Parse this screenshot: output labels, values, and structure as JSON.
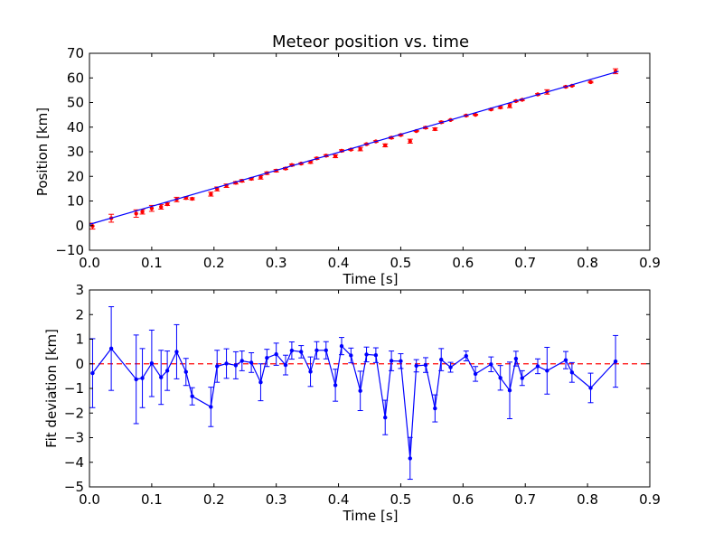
{
  "chart_data": [
    {
      "type": "scatter",
      "title": "Meteor position vs. time",
      "xlabel": "Time [s]",
      "ylabel": "Position [km]",
      "xlim": [
        0.0,
        0.9
      ],
      "ylim": [
        -10,
        70
      ],
      "xticks": [
        "0.0",
        "0.1",
        "0.2",
        "0.3",
        "0.4",
        "0.5",
        "0.6",
        "0.7",
        "0.8",
        "0.9"
      ],
      "yticks": [
        "−10",
        "0",
        "10",
        "20",
        "30",
        "40",
        "50",
        "60",
        "70"
      ],
      "grid": false,
      "series": [
        {
          "kind": "errorbar-points",
          "color": "#ff0000",
          "x": [
            0.005,
            0.035,
            0.075,
            0.085,
            0.1,
            0.115,
            0.125,
            0.14,
            0.155,
            0.165,
            0.195,
            0.205,
            0.22,
            0.235,
            0.245,
            0.26,
            0.275,
            0.285,
            0.3,
            0.315,
            0.325,
            0.34,
            0.355,
            0.365,
            0.38,
            0.395,
            0.405,
            0.42,
            0.435,
            0.445,
            0.46,
            0.475,
            0.485,
            0.5,
            0.515,
            0.525,
            0.54,
            0.555,
            0.565,
            0.58,
            0.605,
            0.62,
            0.645,
            0.66,
            0.675,
            0.685,
            0.695,
            0.72,
            0.735,
            0.765,
            0.775,
            0.805,
            0.845
          ],
          "y": [
            -0.2,
            3.0,
            4.9,
            5.6,
            7.0,
            7.6,
            8.7,
            10.6,
            11.2,
            10.9,
            12.8,
            14.9,
            16.2,
            17.4,
            18.2,
            19.0,
            19.6,
            21.3,
            22.3,
            23.2,
            24.6,
            25.2,
            25.8,
            27.3,
            28.4,
            28.2,
            30.4,
            30.9,
            31.1,
            33.1,
            34.2,
            32.6,
            35.7,
            36.8,
            34.3,
            38.4,
            39.8,
            39.2,
            42.0,
            42.9,
            44.7,
            45.0,
            47.2,
            48.0,
            48.7,
            50.6,
            51.1,
            53.3,
            54.3,
            56.4,
            56.8,
            58.3,
            62.7
          ],
          "yerr": [
            1.2,
            1.6,
            1.5,
            0.9,
            1.2,
            0.9,
            0.5,
            0.9,
            0.5,
            0.4,
            0.8,
            0.8,
            0.7,
            0.5,
            0.5,
            0.4,
            0.7,
            0.5,
            0.5,
            0.4,
            0.4,
            0.3,
            0.5,
            0.4,
            0.4,
            0.6,
            0.4,
            0.3,
            0.7,
            0.3,
            0.3,
            0.6,
            0.4,
            0.3,
            0.8,
            0.2,
            0.4,
            0.5,
            0.4,
            0.2,
            0.3,
            0.2,
            0.3,
            0.4,
            0.8,
            0.3,
            0.3,
            0.3,
            0.9,
            0.3,
            0.2,
            0.3,
            1.0
          ]
        },
        {
          "kind": "fit-line",
          "color": "#0000ff",
          "x": [
            0.0,
            0.85
          ],
          "y": [
            0.5,
            62.7
          ]
        }
      ]
    },
    {
      "type": "line",
      "title": "",
      "xlabel": "Time [s]",
      "ylabel": "Fit deviation [km]",
      "xlim": [
        0.0,
        0.9
      ],
      "ylim": [
        -5,
        3
      ],
      "xticks": [
        "0.0",
        "0.1",
        "0.2",
        "0.3",
        "0.4",
        "0.5",
        "0.6",
        "0.7",
        "0.8",
        "0.9"
      ],
      "yticks": [
        "−5",
        "−4",
        "−3",
        "−2",
        "−1",
        "0",
        "1",
        "2",
        "3"
      ],
      "grid": false,
      "reference_line": {
        "y": 0,
        "color": "#ff0000",
        "style": "dashed"
      },
      "series": [
        {
          "kind": "errorbar-line",
          "color": "#0000ff",
          "x": [
            0.005,
            0.035,
            0.075,
            0.085,
            0.1,
            0.115,
            0.125,
            0.14,
            0.155,
            0.165,
            0.195,
            0.205,
            0.22,
            0.235,
            0.245,
            0.26,
            0.275,
            0.285,
            0.3,
            0.315,
            0.325,
            0.34,
            0.355,
            0.365,
            0.38,
            0.395,
            0.405,
            0.42,
            0.435,
            0.445,
            0.46,
            0.475,
            0.485,
            0.5,
            0.515,
            0.525,
            0.54,
            0.555,
            0.565,
            0.58,
            0.605,
            0.62,
            0.645,
            0.66,
            0.675,
            0.685,
            0.695,
            0.72,
            0.735,
            0.765,
            0.775,
            0.805,
            0.845
          ],
          "y": [
            -0.38,
            0.62,
            -0.63,
            -0.58,
            0.02,
            -0.55,
            -0.28,
            0.49,
            -0.33,
            -1.32,
            -1.75,
            -0.1,
            0.01,
            -0.06,
            0.12,
            0.05,
            -0.75,
            0.24,
            0.39,
            -0.05,
            0.54,
            0.49,
            -0.32,
            0.55,
            0.55,
            -0.87,
            0.72,
            0.34,
            -1.1,
            0.38,
            0.35,
            -2.18,
            0.12,
            0.11,
            -3.84,
            -0.08,
            -0.05,
            -1.81,
            0.17,
            -0.14,
            0.32,
            -0.41,
            -0.02,
            -0.57,
            -1.08,
            0.21,
            -0.58,
            -0.1,
            -0.28,
            0.15,
            -0.35,
            -0.98,
            0.1
          ],
          "yerr": [
            1.4,
            1.7,
            1.8,
            1.2,
            1.35,
            1.1,
            0.8,
            1.1,
            0.55,
            0.35,
            0.8,
            0.65,
            0.6,
            0.55,
            0.4,
            0.4,
            0.75,
            0.35,
            0.45,
            0.4,
            0.35,
            0.25,
            0.6,
            0.35,
            0.35,
            0.65,
            0.35,
            0.3,
            0.8,
            0.3,
            0.3,
            0.7,
            0.4,
            0.3,
            0.85,
            0.25,
            0.3,
            0.55,
            0.45,
            0.2,
            0.2,
            0.3,
            0.3,
            0.5,
            1.15,
            0.3,
            0.3,
            0.3,
            0.95,
            0.35,
            0.4,
            0.6,
            1.05
          ]
        }
      ]
    }
  ]
}
